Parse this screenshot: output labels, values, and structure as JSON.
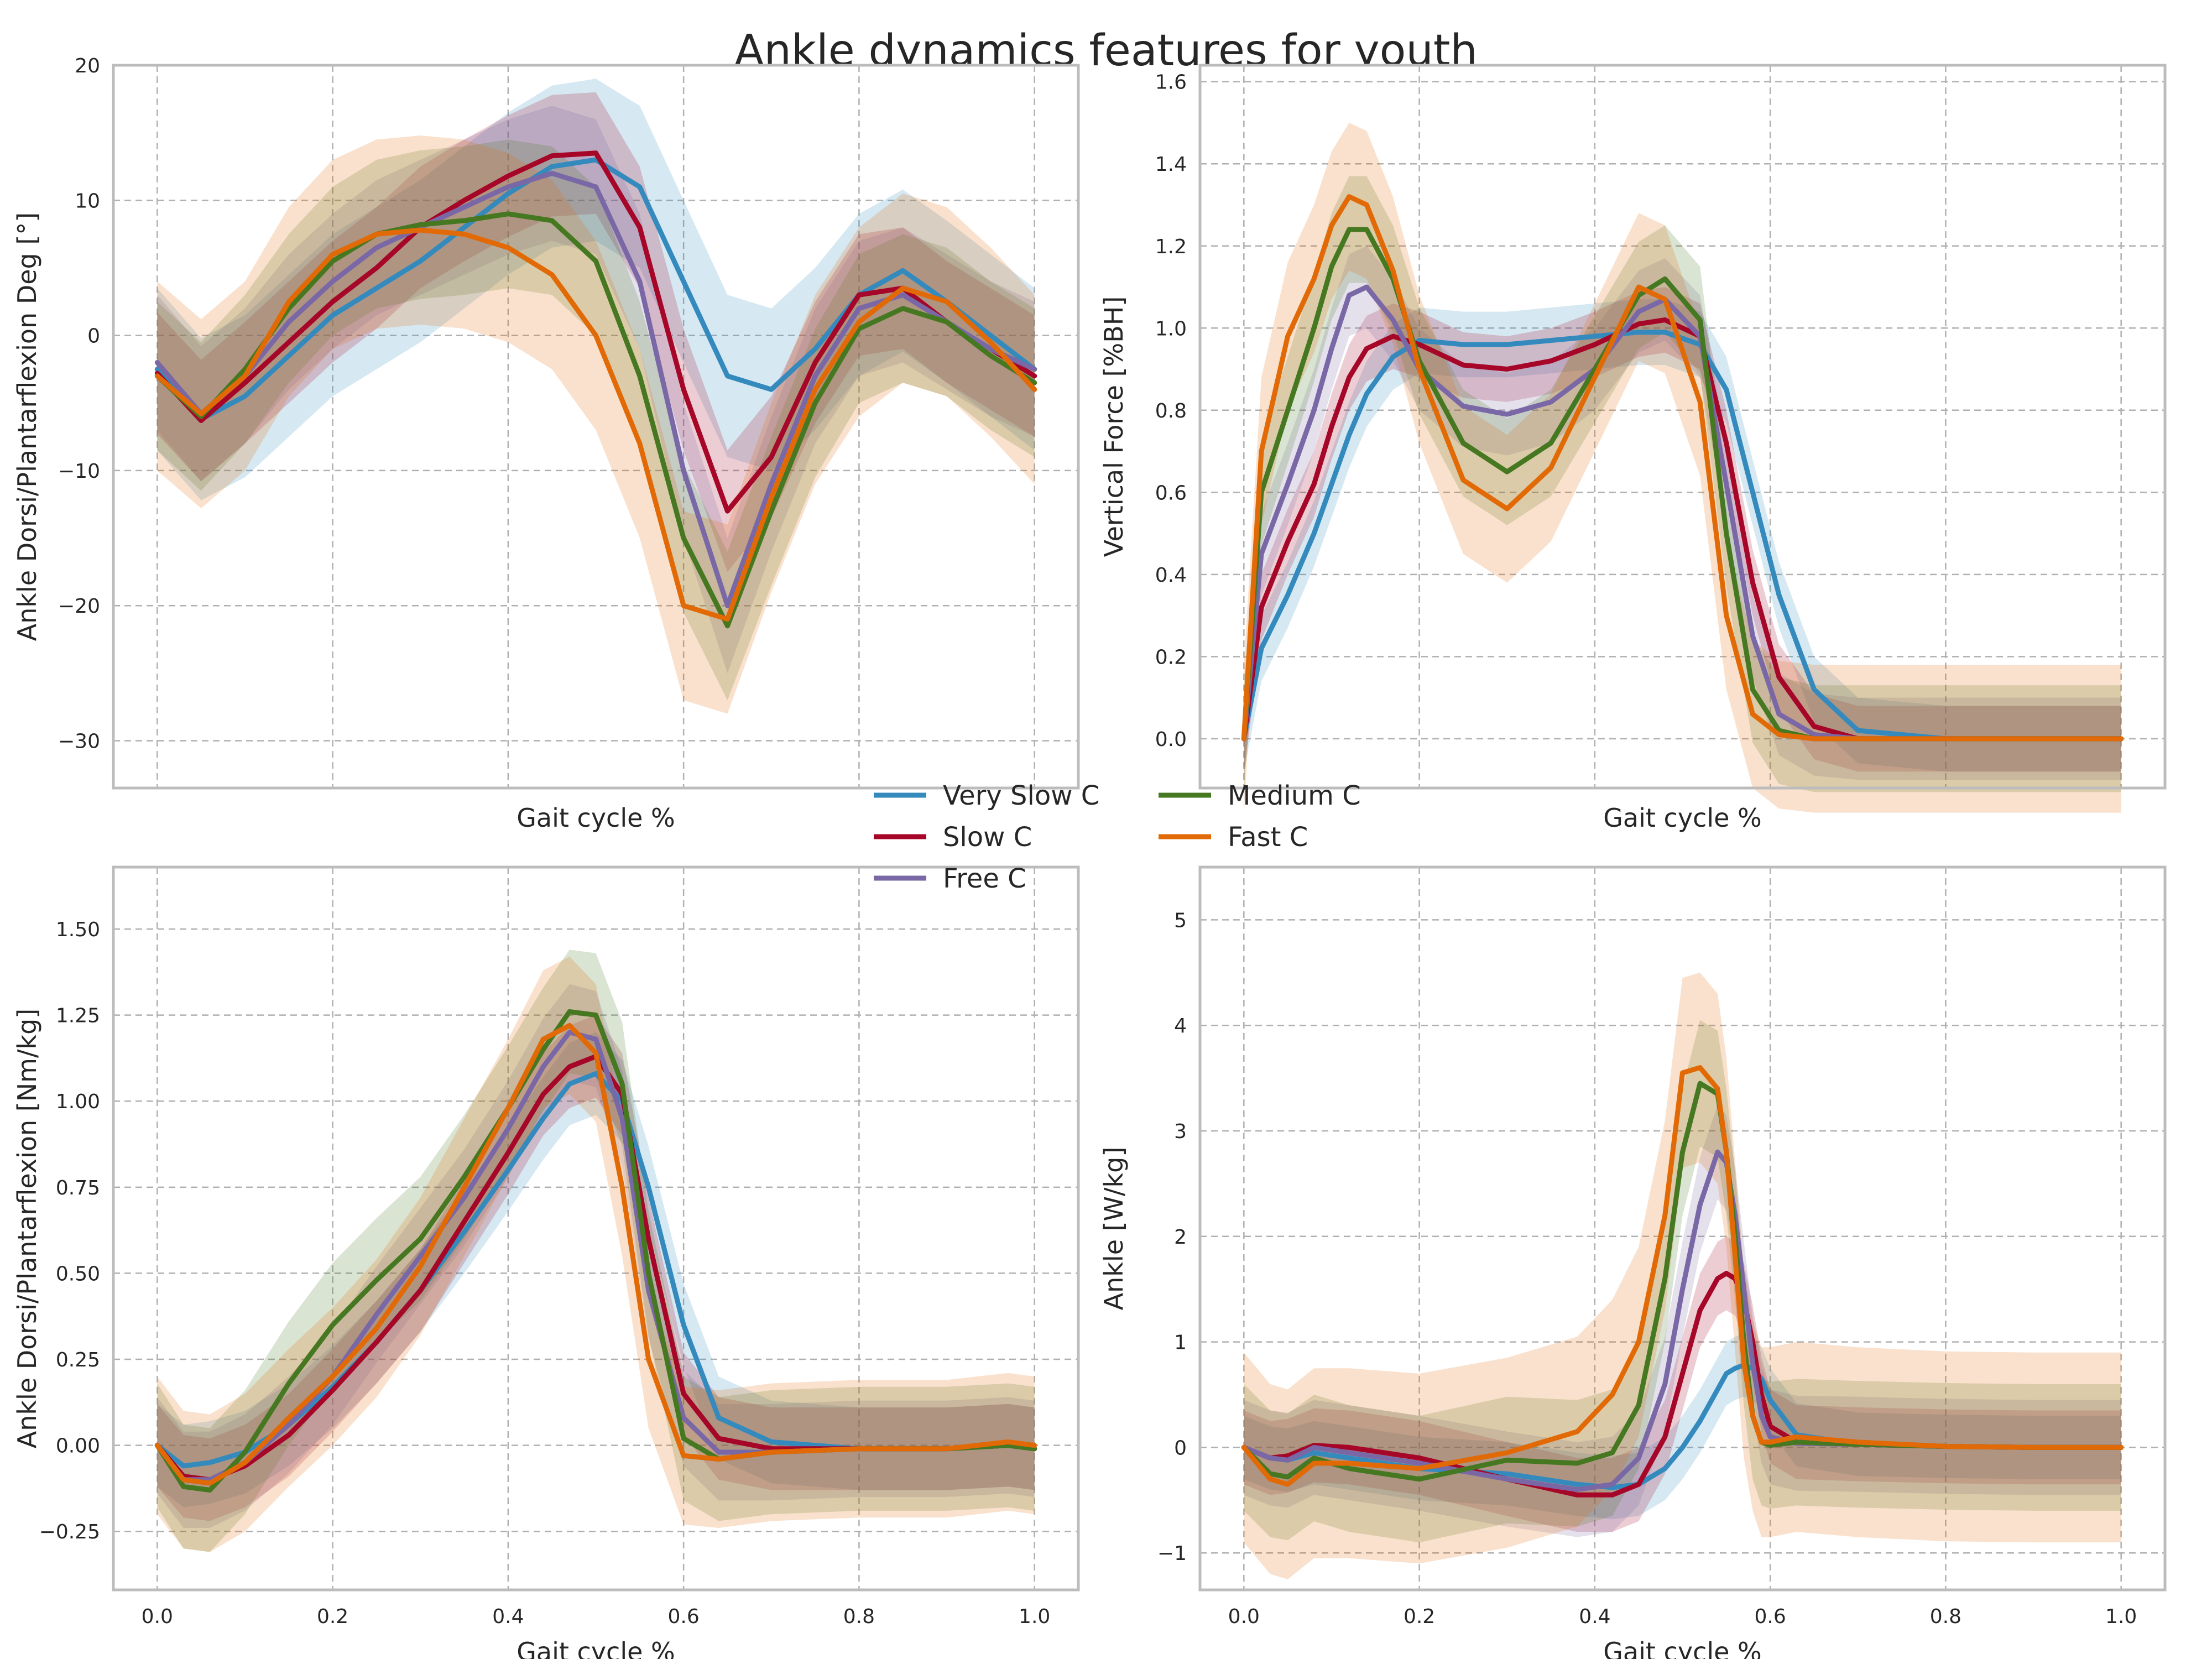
{
  "figure": {
    "title": "Ankle dynamics features for youth"
  },
  "legend": [
    {
      "name": "Very Slow C",
      "color": "#348abd"
    },
    {
      "name": "Slow C",
      "color": "#a60628"
    },
    {
      "name": "Free C",
      "color": "#7a68a6"
    },
    {
      "name": "Medium C",
      "color": "#467821"
    },
    {
      "name": "Fast C",
      "color": "#e16a06"
    }
  ],
  "chart_data": [
    {
      "type": "line",
      "xlabel": "Gait cycle %",
      "ylabel": "Ankle Dorsi/Plantarflexion Deg [°]",
      "xlim": [
        -0.05,
        1.05
      ],
      "ylim": [
        -33.5,
        20
      ],
      "show_xtick_labels": false,
      "xticks": [
        0.0,
        0.2,
        0.4,
        0.6,
        0.8,
        1.0
      ],
      "yticks": [
        -30,
        -20,
        -10,
        0,
        10,
        20
      ],
      "ytick_labels": [
        "−30",
        "−20",
        "−10",
        "0",
        "10",
        "20"
      ],
      "x": [
        0,
        0.05,
        0.1,
        0.15,
        0.2,
        0.25,
        0.3,
        0.35,
        0.4,
        0.45,
        0.5,
        0.55,
        0.6,
        0.65,
        0.7,
        0.75,
        0.8,
        0.85,
        0.9,
        0.95,
        1.0
      ],
      "series": [
        {
          "name": "Very Slow C",
          "values": [
            -2.5,
            -6.2,
            -4.5,
            -1.5,
            1.5,
            3.5,
            5.5,
            8,
            10.5,
            12.5,
            13,
            11,
            4,
            -3,
            -4,
            -1,
            3,
            4.8,
            2.5,
            0,
            -2.5
          ],
          "band": 6
        },
        {
          "name": "Slow C",
          "values": [
            -2.8,
            -6.3,
            -3.5,
            -0.5,
            2.5,
            5,
            8,
            10,
            11.8,
            13.3,
            13.5,
            8,
            -4,
            -13,
            -9,
            -2,
            3,
            3.5,
            1,
            -1,
            -3
          ],
          "band": 4.5
        },
        {
          "name": "Free C",
          "values": [
            -2,
            -5.8,
            -3,
            1,
            4,
            6.5,
            8,
            9.5,
            11,
            12,
            11,
            4,
            -10,
            -20,
            -11,
            -3,
            2,
            3,
            1,
            -1,
            -2.5
          ],
          "band": 5
        },
        {
          "name": "Medium C",
          "values": [
            -3,
            -6,
            -2.5,
            2,
            5.5,
            7.5,
            8.2,
            8.5,
            9,
            8.5,
            5.5,
            -3,
            -15,
            -21.5,
            -13,
            -5,
            0.5,
            2,
            1,
            -1.5,
            -3.5
          ],
          "band": 5.5
        },
        {
          "name": "Fast C",
          "values": [
            -3,
            -5.8,
            -3,
            2.5,
            6,
            7.5,
            7.8,
            7.5,
            6.5,
            4.5,
            0,
            -8,
            -20,
            -21,
            -12,
            -4,
            1,
            3.5,
            2.5,
            -0.5,
            -4
          ],
          "band": 7
        }
      ]
    },
    {
      "type": "line",
      "xlabel": "Gait cycle %",
      "ylabel": "Vertical Force [%BH]",
      "xlim": [
        -0.05,
        1.05
      ],
      "ylim": [
        -0.12,
        1.64
      ],
      "show_xtick_labels": false,
      "xticks": [
        0.0,
        0.2,
        0.4,
        0.6,
        0.8,
        1.0
      ],
      "yticks": [
        0.0,
        0.2,
        0.4,
        0.6,
        0.8,
        1.0,
        1.2,
        1.4,
        1.6
      ],
      "ytick_labels": [
        "0.0",
        "0.2",
        "0.4",
        "0.6",
        "0.8",
        "1.0",
        "1.2",
        "1.4",
        "1.6"
      ],
      "x": [
        0,
        0.02,
        0.05,
        0.08,
        0.1,
        0.12,
        0.14,
        0.17,
        0.2,
        0.25,
        0.3,
        0.35,
        0.4,
        0.45,
        0.48,
        0.52,
        0.55,
        0.58,
        0.61,
        0.65,
        0.7,
        0.8,
        1.0
      ],
      "series": [
        {
          "name": "Very Slow C",
          "values": [
            0,
            0.22,
            0.35,
            0.5,
            0.62,
            0.74,
            0.84,
            0.93,
            0.97,
            0.96,
            0.96,
            0.97,
            0.98,
            0.99,
            0.99,
            0.96,
            0.85,
            0.6,
            0.35,
            0.12,
            0.02,
            0,
            0
          ],
          "band": 0.08
        },
        {
          "name": "Slow C",
          "values": [
            0,
            0.32,
            0.48,
            0.62,
            0.76,
            0.88,
            0.95,
            0.98,
            0.96,
            0.91,
            0.9,
            0.92,
            0.96,
            1.01,
            1.02,
            0.98,
            0.72,
            0.38,
            0.15,
            0.03,
            0,
            0,
            0
          ],
          "band": 0.08
        },
        {
          "name": "Free C",
          "values": [
            0,
            0.45,
            0.62,
            0.8,
            0.95,
            1.08,
            1.1,
            1.02,
            0.9,
            0.81,
            0.79,
            0.82,
            0.9,
            1.04,
            1.07,
            0.98,
            0.62,
            0.25,
            0.06,
            0.01,
            0,
            0,
            0
          ],
          "band": 0.1
        },
        {
          "name": "Medium C",
          "values": [
            0,
            0.6,
            0.8,
            1.0,
            1.15,
            1.24,
            1.24,
            1.12,
            0.92,
            0.72,
            0.65,
            0.72,
            0.9,
            1.08,
            1.12,
            1.02,
            0.5,
            0.12,
            0.02,
            0,
            0,
            0,
            0
          ],
          "band": 0.13
        },
        {
          "name": "Fast C",
          "values": [
            0,
            0.7,
            0.98,
            1.12,
            1.25,
            1.32,
            1.3,
            1.14,
            0.9,
            0.63,
            0.56,
            0.66,
            0.88,
            1.1,
            1.07,
            0.82,
            0.3,
            0.06,
            0.01,
            0,
            0,
            0,
            0
          ],
          "band": 0.18
        }
      ]
    },
    {
      "type": "line",
      "xlabel": "Gait cycle %",
      "ylabel": "Ankle Dorsi/Plantarflexion [Nm/kg]",
      "xlim": [
        -0.05,
        1.05
      ],
      "ylim": [
        -0.42,
        1.68
      ],
      "show_xtick_labels": true,
      "xticks": [
        0.0,
        0.2,
        0.4,
        0.6,
        0.8,
        1.0
      ],
      "xtick_labels": [
        "0.0",
        "0.2",
        "0.4",
        "0.6",
        "0.8",
        "1.0"
      ],
      "yticks": [
        -0.25,
        0.0,
        0.25,
        0.5,
        0.75,
        1.0,
        1.25,
        1.5
      ],
      "ytick_labels": [
        "−0.25",
        "0.00",
        "0.25",
        "0.50",
        "0.75",
        "1.00",
        "1.25",
        "1.50"
      ],
      "x": [
        0,
        0.03,
        0.06,
        0.1,
        0.15,
        0.2,
        0.25,
        0.3,
        0.35,
        0.4,
        0.44,
        0.47,
        0.5,
        0.53,
        0.56,
        0.6,
        0.64,
        0.7,
        0.8,
        0.9,
        0.97,
        1.0
      ],
      "series": [
        {
          "name": "Very Slow C",
          "values": [
            0,
            -0.06,
            -0.05,
            -0.02,
            0.06,
            0.17,
            0.3,
            0.45,
            0.62,
            0.8,
            0.95,
            1.05,
            1.08,
            1.0,
            0.75,
            0.35,
            0.08,
            0.01,
            -0.01,
            -0.01,
            0,
            -0.01
          ],
          "band": 0.12
        },
        {
          "name": "Slow C",
          "values": [
            0,
            -0.09,
            -0.1,
            -0.06,
            0.03,
            0.16,
            0.3,
            0.45,
            0.65,
            0.85,
            1.02,
            1.1,
            1.13,
            1.02,
            0.6,
            0.15,
            0.02,
            -0.01,
            -0.01,
            -0.01,
            0,
            -0.01
          ],
          "band": 0.12
        },
        {
          "name": "Free C",
          "values": [
            0,
            -0.1,
            -0.1,
            -0.05,
            0.06,
            0.2,
            0.38,
            0.55,
            0.72,
            0.92,
            1.1,
            1.2,
            1.18,
            0.95,
            0.45,
            0.08,
            -0.02,
            -0.02,
            -0.01,
            -0.01,
            0,
            -0.01
          ],
          "band": 0.14
        },
        {
          "name": "Medium C",
          "values": [
            0,
            -0.12,
            -0.13,
            -0.02,
            0.18,
            0.35,
            0.48,
            0.6,
            0.78,
            0.98,
            1.15,
            1.26,
            1.25,
            1.05,
            0.5,
            0.02,
            -0.04,
            -0.02,
            -0.01,
            -0.01,
            0,
            -0.01
          ],
          "band": 0.18
        },
        {
          "name": "Fast C",
          "values": [
            0,
            -0.1,
            -0.11,
            -0.05,
            0.08,
            0.2,
            0.34,
            0.52,
            0.75,
            0.98,
            1.18,
            1.22,
            1.14,
            0.75,
            0.25,
            -0.03,
            -0.04,
            -0.02,
            -0.01,
            -0.01,
            0.01,
            0
          ],
          "band": 0.2
        }
      ]
    },
    {
      "type": "line",
      "xlabel": "Gait cycle %",
      "ylabel": "Ankle [W/kg]",
      "xlim": [
        -0.05,
        1.05
      ],
      "ylim": [
        -1.35,
        5.5
      ],
      "show_xtick_labels": true,
      "xticks": [
        0.0,
        0.2,
        0.4,
        0.6,
        0.8,
        1.0
      ],
      "xtick_labels": [
        "0.0",
        "0.2",
        "0.4",
        "0.6",
        "0.8",
        "1.0"
      ],
      "yticks": [
        -1,
        0,
        1,
        2,
        3,
        4,
        5
      ],
      "ytick_labels": [
        "−1",
        "0",
        "1",
        "2",
        "3",
        "4",
        "5"
      ],
      "x": [
        0,
        0.03,
        0.05,
        0.08,
        0.12,
        0.2,
        0.3,
        0.38,
        0.42,
        0.45,
        0.48,
        0.5,
        0.52,
        0.54,
        0.55,
        0.56,
        0.57,
        0.58,
        0.59,
        0.6,
        0.63,
        0.7,
        0.8,
        0.9,
        1.0
      ],
      "series": [
        {
          "name": "Very Slow C",
          "values": [
            0,
            -0.1,
            -0.12,
            -0.05,
            -0.1,
            -0.2,
            -0.25,
            -0.35,
            -0.38,
            -0.35,
            -0.2,
            0.0,
            0.25,
            0.55,
            0.7,
            0.75,
            0.78,
            0.75,
            0.65,
            0.45,
            0.12,
            0.03,
            0.01,
            0,
            0
          ],
          "band": 0.3
        },
        {
          "name": "Slow C",
          "values": [
            0,
            -0.1,
            -0.08,
            0.02,
            0.0,
            -0.1,
            -0.3,
            -0.45,
            -0.45,
            -0.35,
            0.1,
            0.7,
            1.3,
            1.6,
            1.65,
            1.6,
            1.4,
            1.0,
            0.5,
            0.2,
            0.05,
            0.03,
            0.01,
            0,
            0
          ],
          "band": 0.35
        },
        {
          "name": "Free C",
          "values": [
            0,
            -0.1,
            -0.12,
            0.0,
            -0.05,
            -0.15,
            -0.3,
            -0.4,
            -0.35,
            -0.1,
            0.6,
            1.5,
            2.3,
            2.8,
            2.7,
            2.2,
            1.5,
            0.8,
            0.3,
            0.1,
            0.04,
            0.03,
            0.01,
            0,
            0
          ],
          "band": 0.45
        },
        {
          "name": "Medium C",
          "values": [
            0,
            -0.25,
            -0.28,
            -0.1,
            -0.2,
            -0.3,
            -0.12,
            -0.15,
            -0.05,
            0.4,
            1.6,
            2.8,
            3.45,
            3.35,
            2.8,
            2.0,
            1.0,
            0.3,
            0.05,
            0.02,
            0.05,
            0.03,
            0.01,
            0,
            0
          ],
          "band": 0.6
        },
        {
          "name": "Fast C",
          "values": [
            0,
            -0.3,
            -0.35,
            -0.15,
            -0.15,
            -0.2,
            -0.05,
            0.15,
            0.5,
            1.0,
            2.2,
            3.55,
            3.6,
            3.4,
            2.8,
            1.8,
            0.8,
            0.3,
            0.05,
            0.05,
            0.1,
            0.05,
            0.01,
            0,
            0
          ],
          "band": 0.9
        }
      ]
    }
  ]
}
